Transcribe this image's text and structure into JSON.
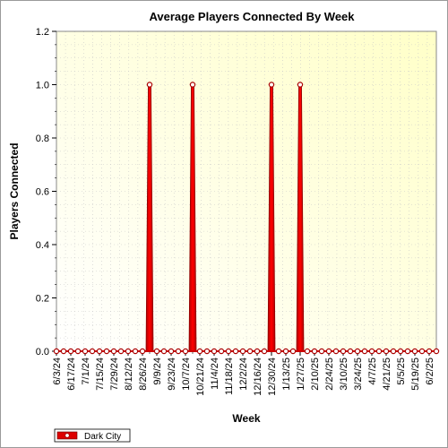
{
  "chart_data": {
    "type": "area",
    "title": "Average Players Connected By Week",
    "xlabel": "Week",
    "ylabel": "Players Connected",
    "ylim": [
      0,
      1.2
    ],
    "yticks": [
      "0.0",
      "0.2",
      "0.4",
      "0.6",
      "0.8",
      "1.0",
      "1.2"
    ],
    "grid": true,
    "legend_position": "bottom-left",
    "x_tick_labels": [
      "6/3/24",
      "6/17/24",
      "7/1/24",
      "7/15/24",
      "7/29/24",
      "8/12/24",
      "8/26/24",
      "9/9/24",
      "9/23/24",
      "10/7/24",
      "10/21/24",
      "11/4/24",
      "11/18/24",
      "12/2/24",
      "12/16/24",
      "12/30/24",
      "1/13/25",
      "1/27/25",
      "2/10/25",
      "2/24/25",
      "3/10/25",
      "3/24/25",
      "4/7/25",
      "4/21/25",
      "5/5/25",
      "5/19/25",
      "6/2/25"
    ],
    "x": [
      "6/3/24",
      "6/10/24",
      "6/17/24",
      "6/24/24",
      "7/1/24",
      "7/8/24",
      "7/15/24",
      "7/22/24",
      "7/29/24",
      "8/5/24",
      "8/12/24",
      "8/19/24",
      "8/26/24",
      "9/2/24",
      "9/9/24",
      "9/16/24",
      "9/23/24",
      "9/30/24",
      "10/7/24",
      "10/14/24",
      "10/21/24",
      "10/28/24",
      "11/4/24",
      "11/11/24",
      "11/18/24",
      "11/25/24",
      "12/2/24",
      "12/9/24",
      "12/16/24",
      "12/23/24",
      "12/30/24",
      "1/6/25",
      "1/13/25",
      "1/20/25",
      "1/27/25",
      "2/3/25",
      "2/10/25",
      "2/17/25",
      "2/24/25",
      "3/3/25",
      "3/10/25",
      "3/17/25",
      "3/24/25",
      "3/31/25",
      "4/7/25",
      "4/14/25",
      "4/21/25",
      "4/28/25",
      "5/5/25",
      "5/12/25",
      "5/19/25",
      "5/26/25",
      "6/2/25",
      "6/9/25"
    ],
    "series": [
      {
        "name": "Dark City",
        "color": "#dd0000",
        "values": [
          0,
          0,
          0,
          0,
          0,
          0,
          0,
          0,
          0,
          0,
          0,
          0,
          0,
          1,
          0,
          0,
          0,
          0,
          0,
          1,
          0,
          0,
          0,
          0,
          0,
          0,
          0,
          0,
          0,
          0,
          1,
          0,
          0,
          0,
          1,
          0,
          0,
          0,
          0,
          0,
          0,
          0,
          0,
          0,
          0,
          0,
          0,
          0,
          0,
          0,
          0,
          0,
          0,
          0
        ]
      }
    ]
  }
}
